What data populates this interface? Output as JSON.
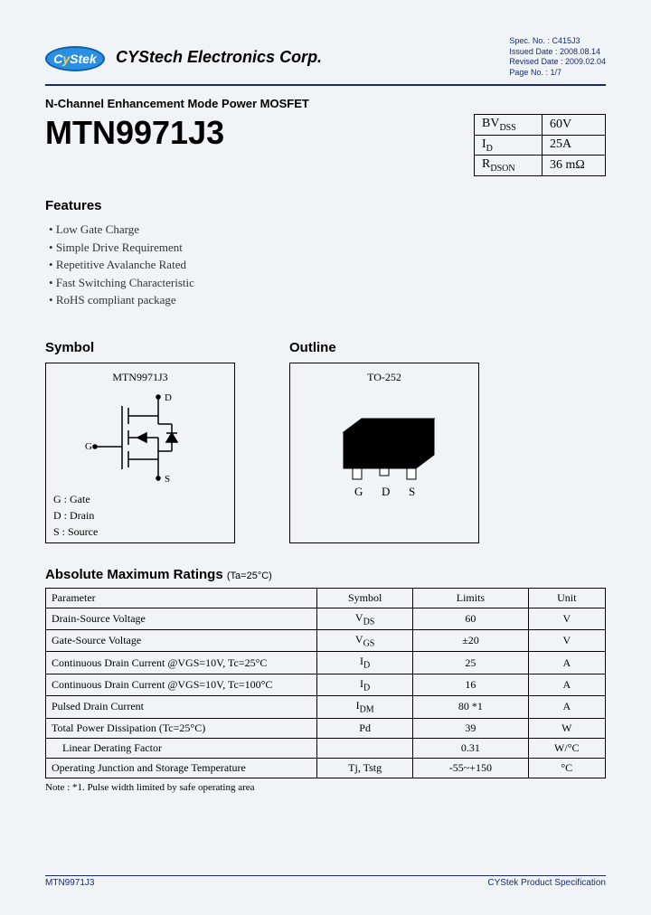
{
  "header": {
    "logo_text_a": "C",
    "logo_text_b": "y",
    "logo_text_c": "Stek",
    "company": "CYStech Electronics Corp.",
    "spec_no": "Spec. No. : C415J3",
    "issued": "Issued Date : 2008.08.14",
    "revised": "Revised Date : 2009.02.04",
    "page": "Page No. : 1/7"
  },
  "subtitle": "N-Channel Enhancement Mode Power MOSFET",
  "part_number": "MTN9971J3",
  "key_table": [
    {
      "sym_pre": "BV",
      "sym_sub": "DSS",
      "val": "60V"
    },
    {
      "sym_pre": "I",
      "sym_sub": "D",
      "val": "25A"
    },
    {
      "sym_pre": "R",
      "sym_sub": "DSON",
      "val": "36 mΩ"
    }
  ],
  "features_heading": "Features",
  "features": [
    "Low Gate Charge",
    "Simple Drive Requirement",
    "Repetitive Avalanche Rated",
    "Fast Switching Characteristic",
    "RoHS compliant package"
  ],
  "symbol_heading": "Symbol",
  "outline_heading": "Outline",
  "symbol_box_title": "MTN9971J3",
  "symbol_pins": {
    "D": "D",
    "G": "G",
    "S": "S"
  },
  "pin_legend": {
    "G": "G : Gate",
    "D": "D : Drain",
    "S": "S : Source"
  },
  "outline_box_title": "TO-252",
  "outline_pins": {
    "G": "G",
    "D": "D",
    "S": "S"
  },
  "ratings_heading": "Absolute Maximum Ratings",
  "ratings_cond": "(Ta=25°C)",
  "ratings_columns": [
    "Parameter",
    "Symbol",
    "Limits",
    "Unit"
  ],
  "ratings_rows": [
    {
      "p": "Drain-Source Voltage",
      "s_pre": "V",
      "s_sub": "DS",
      "l": "60",
      "u": "V",
      "top": true
    },
    {
      "p": "Gate-Source Voltage",
      "s_pre": "V",
      "s_sub": "GS",
      "l": "±20",
      "u": "V"
    },
    {
      "p": "Continuous Drain Current @VGS=10V, Tc=25°C",
      "s_pre": "I",
      "s_sub": "D",
      "l": "25",
      "u": "A",
      "top": true
    },
    {
      "p": "Continuous Drain Current @VGS=10V, Tc=100°C",
      "s_pre": "I",
      "s_sub": "D",
      "l": "16",
      "u": "A",
      "top": true
    },
    {
      "p": "Pulsed Drain Current",
      "s_pre": "I",
      "s_sub": "DM",
      "l": "80   *1",
      "u": "A"
    },
    {
      "p": "Total Power Dissipation (Tc=25°C)",
      "s_pre": "Pd",
      "s_sub": "",
      "l": "39",
      "u": "W",
      "top": true
    },
    {
      "p": "    Linear Derating Factor",
      "s_pre": "",
      "s_sub": "",
      "l": "0.31",
      "u": "W/°C"
    },
    {
      "p": "Operating Junction and Storage Temperature",
      "s_pre": "Tj, Tstg",
      "s_sub": "",
      "l": "-55~+150",
      "u": "°C",
      "top": true
    }
  ],
  "note": "Note :  *1. Pulse width limited by safe operating area",
  "footer_left": "MTN9971J3",
  "footer_right": "CYStek Product Specification",
  "colors": {
    "page_bg": "#f0f4f7",
    "rule": "#1a2a6c",
    "logo_fill": "#2a8fe0",
    "logo_border": "#0b5fb0",
    "logo_accent": "#ffd23f"
  }
}
